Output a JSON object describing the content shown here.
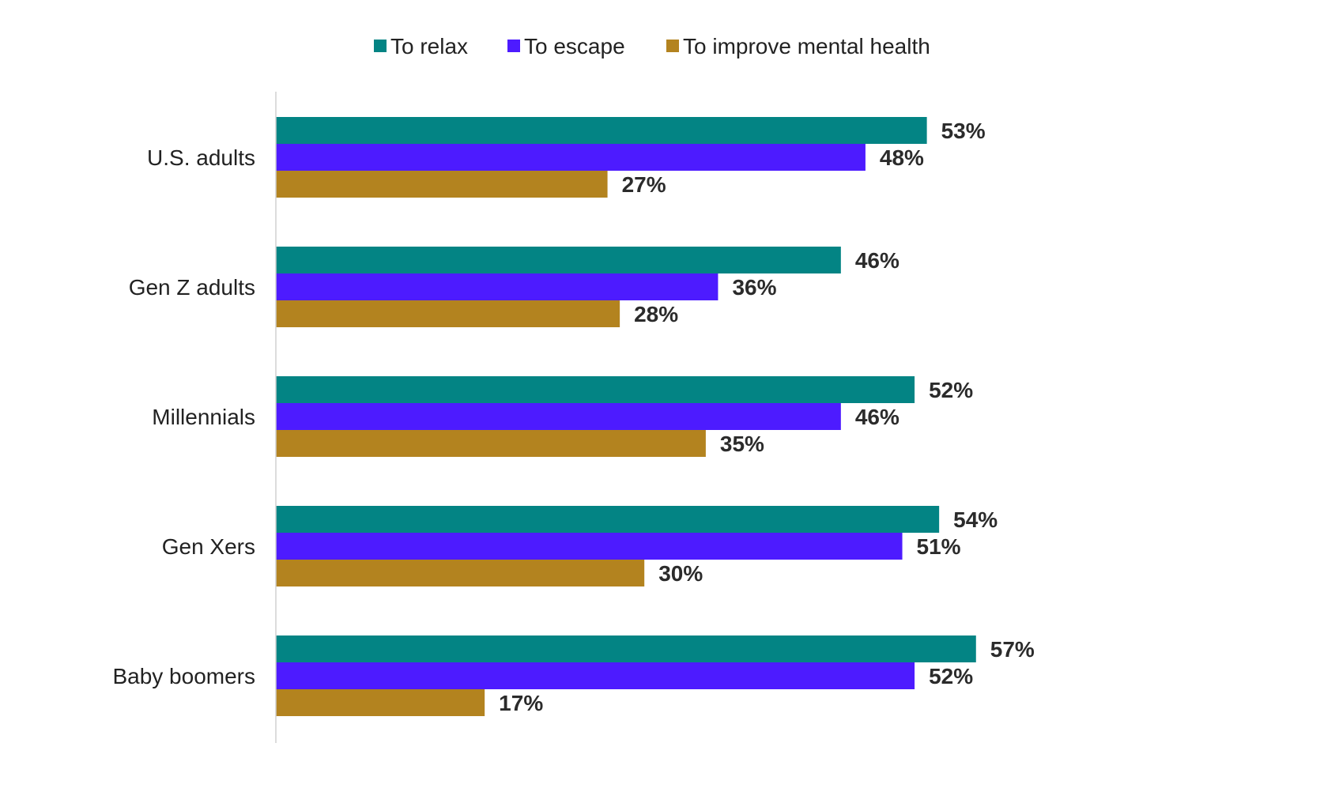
{
  "chart_data": {
    "type": "bar",
    "orientation": "horizontal",
    "categories": [
      "U.S. adults",
      "Gen Z adults",
      "Millennials",
      "Gen Xers",
      "Baby boomers"
    ],
    "series": [
      {
        "name": "To relax",
        "color": "#038484",
        "values": [
          53,
          46,
          52,
          54,
          57
        ],
        "labels": [
          "53%",
          "46%",
          "52%",
          "54%",
          "57%"
        ]
      },
      {
        "name": "To escape",
        "color": "#4d1bff",
        "values": [
          48,
          36,
          46,
          51,
          52
        ],
        "labels": [
          "48%",
          "36%",
          "46%",
          "51%",
          "52%"
        ]
      },
      {
        "name": "To improve mental health",
        "color": "#b3831f",
        "values": [
          27,
          28,
          35,
          30,
          17
        ],
        "labels": [
          "27%",
          "28%",
          "35%",
          "30%",
          "17%"
        ]
      }
    ],
    "xlim": [
      0,
      100
    ],
    "unit": "%",
    "legend_position": "top-center",
    "grid": false,
    "title": "",
    "xlabel": "",
    "ylabel": ""
  }
}
